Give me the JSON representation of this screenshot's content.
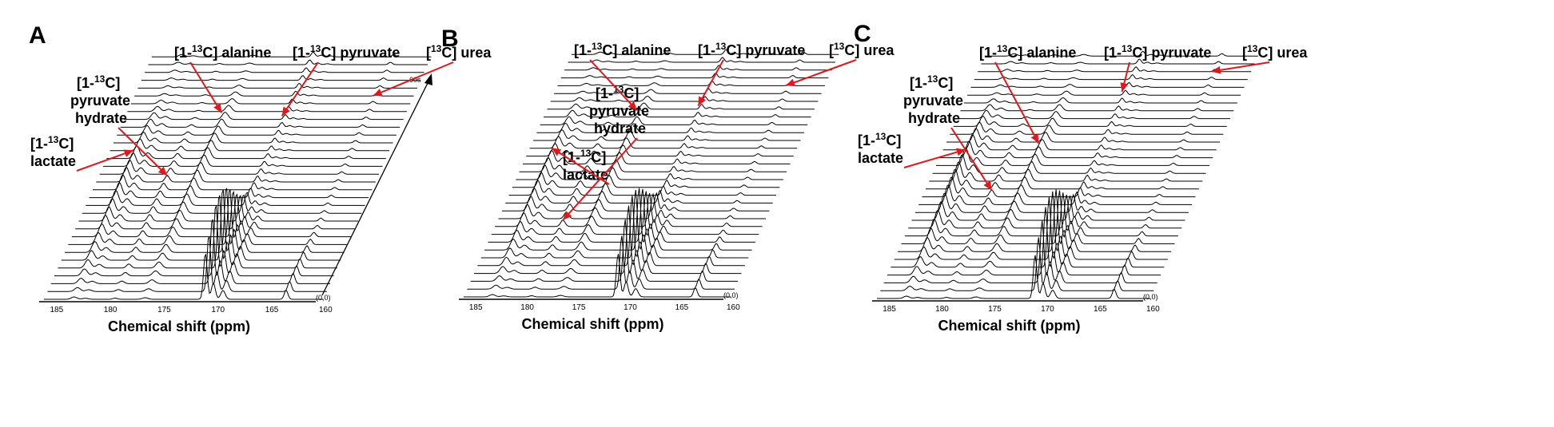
{
  "figure": {
    "panels": [
      {
        "letter": "A"
      },
      {
        "letter": "B"
      },
      {
        "letter": "C"
      }
    ],
    "corner_label": "(0,0)",
    "time_arrow_label": "60s"
  },
  "labels": {
    "alanine_prefix": "[1-",
    "alanine_sup": "13",
    "alanine_suffix": "C] alanine",
    "pyruvate_prefix": "[1-",
    "pyruvate_sup": "13",
    "pyruvate_suffix": "C] pyruvate",
    "urea_prefix": "[",
    "urea_sup": "13",
    "urea_suffix": "C] urea",
    "hydrate_line1_prefix": "[1-",
    "hydrate_line1_sup": "13",
    "hydrate_line1_suffix": "C]",
    "hydrate_line2": "pyruvate",
    "hydrate_line3": "hydrate",
    "lactate_line1_prefix": "[1-",
    "lactate_line1_sup": "13",
    "lactate_line1_suffix": "C]",
    "lactate_line2": "lactate"
  },
  "colors": {
    "arrow": "#e3161b",
    "trace": "#000000"
  },
  "chart_data": [
    {
      "type": "line",
      "panel": "A",
      "xlabel": "Chemical shift (ppm)",
      "xlim": [
        186,
        160
      ],
      "x_reversed": true,
      "x_ticks": [
        185,
        180,
        175,
        170,
        165,
        160
      ],
      "time_axis": {
        "start": 0,
        "end": 60,
        "unit": "s"
      },
      "n_spectra": 32,
      "peaks": [
        {
          "name": "[1-13C] lactate",
          "ppm": 183.2
        },
        {
          "name": "[1-13C] pyruvate hydrate",
          "ppm": 179.4
        },
        {
          "name": "[1-13C] alanine",
          "ppm": 176.6
        },
        {
          "name": "[1-13C] pyruvate",
          "ppm": 171.0
        },
        {
          "name": "[13C] urea",
          "ppm": 163.5
        }
      ]
    },
    {
      "type": "line",
      "panel": "B",
      "xlabel": "Chemical shift (ppm)",
      "xlim": [
        186,
        160
      ],
      "x_reversed": true,
      "x_ticks": [
        185,
        180,
        175,
        170,
        165,
        160
      ],
      "n_spectra": 32,
      "peaks": [
        {
          "name": "[1-13C] lactate",
          "ppm": 183.2
        },
        {
          "name": "[1-13C] pyruvate hydrate",
          "ppm": 179.4
        },
        {
          "name": "[1-13C] alanine",
          "ppm": 176.6
        },
        {
          "name": "[1-13C] pyruvate",
          "ppm": 171.0
        },
        {
          "name": "[13C] urea",
          "ppm": 163.5
        }
      ]
    },
    {
      "type": "line",
      "panel": "C",
      "xlabel": "Chemical shift (ppm)",
      "xlim": [
        186,
        160
      ],
      "x_reversed": true,
      "x_ticks": [
        185,
        180,
        175,
        170,
        165,
        160
      ],
      "n_spectra": 32,
      "peaks": [
        {
          "name": "[1-13C] lactate",
          "ppm": 183.2
        },
        {
          "name": "[1-13C] pyruvate hydrate",
          "ppm": 179.4
        },
        {
          "name": "[1-13C] alanine",
          "ppm": 176.6
        },
        {
          "name": "[1-13C] pyruvate",
          "ppm": 171.0
        },
        {
          "name": "[13C] urea",
          "ppm": 163.5
        }
      ]
    }
  ]
}
